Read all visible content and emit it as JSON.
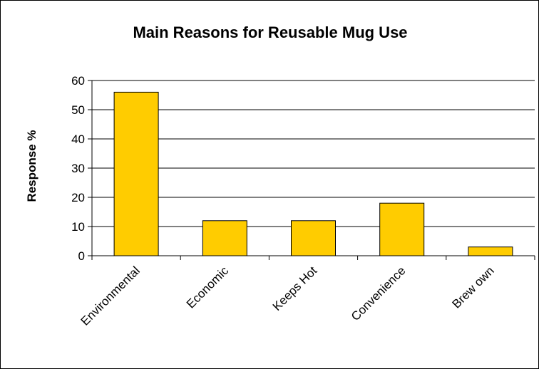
{
  "chart_data": {
    "type": "bar",
    "title": "Main Reasons for Reusable Mug Use",
    "xlabel": "",
    "ylabel": "Response %",
    "categories": [
      "Environmental",
      "Economic",
      "Keeps Hot",
      "Convenience",
      "Brew own"
    ],
    "values": [
      56,
      12,
      12,
      18,
      3
    ],
    "ylim": [
      0,
      60
    ],
    "yticks": [
      0,
      10,
      20,
      30,
      40,
      50,
      60
    ],
    "grid": true,
    "legend": "none",
    "colors": {
      "bar_fill": "#FFCC00",
      "bar_stroke": "#000000",
      "grid": "#000000",
      "background": "#FFFFFF"
    }
  }
}
